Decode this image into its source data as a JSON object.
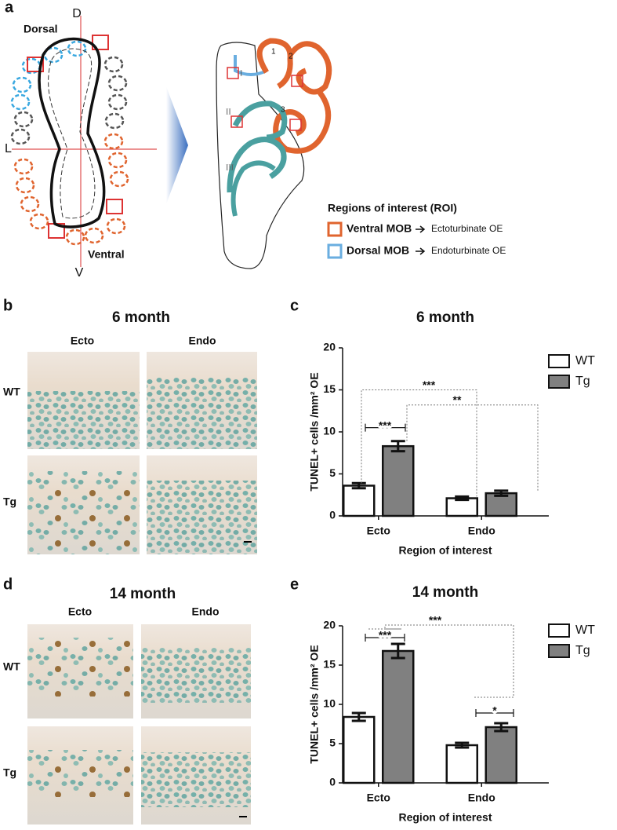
{
  "figure": {
    "panel_a": {
      "label": "a",
      "axis_top": "D",
      "axis_bottom": "V",
      "axis_left": "L",
      "dorsal": "Dorsal",
      "ventral": "Ventral",
      "turbinate_numbers": [
        "1",
        "2",
        "3"
      ],
      "roman_numerals": [
        "I",
        "II",
        "III"
      ],
      "roi_title": "Regions of interest (ROI)",
      "roi_items": [
        {
          "label": "Ventral MOB",
          "target": "Ectoturbinate OE",
          "color": "#e0642e"
        },
        {
          "label": "Dorsal MOB",
          "target": "Endoturbinate OE",
          "color": "#6aaee0"
        }
      ]
    },
    "panel_b": {
      "label": "b",
      "title": "6 month",
      "columns": [
        "Ecto",
        "Endo"
      ],
      "rows": [
        "WT",
        "Tg"
      ]
    },
    "panel_d": {
      "label": "d",
      "title": "14 month",
      "columns": [
        "Ecto",
        "Endo"
      ],
      "rows": [
        "WT",
        "Tg"
      ]
    }
  },
  "chart_data": [
    {
      "type": "bar",
      "panel_label": "c",
      "title": "6 month",
      "xlabel": "Region of interest",
      "ylabel": "TUNEL+ cells /mm² OE",
      "categories": [
        "Ecto",
        "Endo"
      ],
      "series": [
        {
          "name": "WT",
          "color": "#ffffff",
          "values": [
            3.6,
            2.1
          ],
          "errors": [
            0.3,
            0.2
          ]
        },
        {
          "name": "Tg",
          "color": "#808080",
          "values": [
            8.3,
            2.7
          ],
          "errors": [
            0.6,
            0.3
          ]
        }
      ],
      "ylim": [
        0,
        20
      ],
      "yticks": [
        0,
        5,
        10,
        15,
        20
      ],
      "annotations": [
        "***",
        "***",
        "**"
      ]
    },
    {
      "type": "bar",
      "panel_label": "e",
      "title": "14 month",
      "xlabel": "Region of interest",
      "ylabel": "TUNEL+ cells /mm² OE",
      "categories": [
        "Ecto",
        "Endo"
      ],
      "series": [
        {
          "name": "WT",
          "color": "#ffffff",
          "values": [
            8.4,
            4.8
          ],
          "errors": [
            0.5,
            0.3
          ]
        },
        {
          "name": "Tg",
          "color": "#808080",
          "values": [
            16.8,
            7.1
          ],
          "errors": [
            0.9,
            0.5
          ]
        }
      ],
      "ylim": [
        0,
        20
      ],
      "yticks": [
        0,
        5,
        10,
        15,
        20
      ],
      "annotations": [
        "***",
        "***",
        "*"
      ]
    }
  ]
}
